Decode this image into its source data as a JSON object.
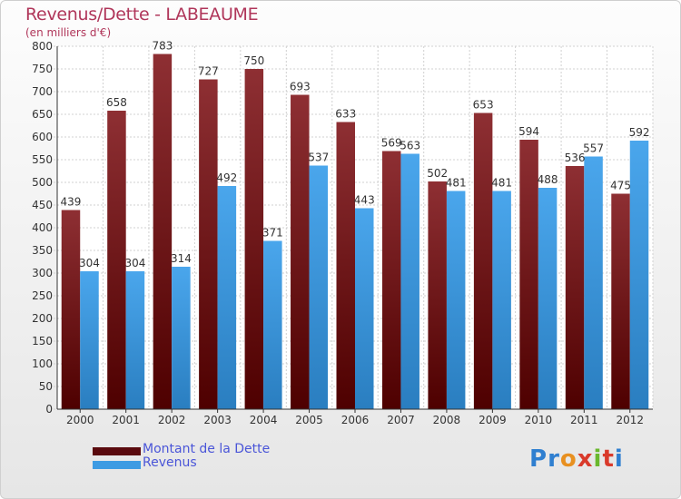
{
  "title": "Revenus/Dette - LABEAUME",
  "subtitle": "(en milliers d'€)",
  "logo": {
    "letters": [
      "P",
      "r",
      "o",
      "x",
      "i",
      "t",
      "i"
    ],
    "colors": [
      "#2f7fd0",
      "#2f7fd0",
      "#e89020",
      "#d93a2b",
      "#6ab82e",
      "#d93a2b",
      "#2f7fd0"
    ]
  },
  "chart_data": {
    "type": "bar",
    "categories": [
      "2000",
      "2001",
      "2002",
      "2003",
      "2004",
      "2005",
      "2006",
      "2007",
      "2008",
      "2009",
      "2010",
      "2011",
      "2012"
    ],
    "series": [
      {
        "name": "Montant de la Dette",
        "values": [
          439,
          658,
          783,
          727,
          750,
          693,
          633,
          569,
          502,
          653,
          594,
          536,
          475
        ],
        "color": "#7a1f24"
      },
      {
        "name": "Revenus",
        "values": [
          304,
          304,
          314,
          492,
          371,
          537,
          443,
          563,
          481,
          481,
          488,
          557,
          592
        ],
        "color": "#3d9be3"
      }
    ],
    "ylim": [
      0,
      800
    ],
    "yticks": [
      "0",
      "50",
      "100",
      "150",
      "200",
      "250",
      "300",
      "350",
      "400",
      "450",
      "500",
      "550",
      "600",
      "650",
      "700",
      "750",
      "800"
    ],
    "grid": true,
    "legend_position": "bottom-left"
  }
}
